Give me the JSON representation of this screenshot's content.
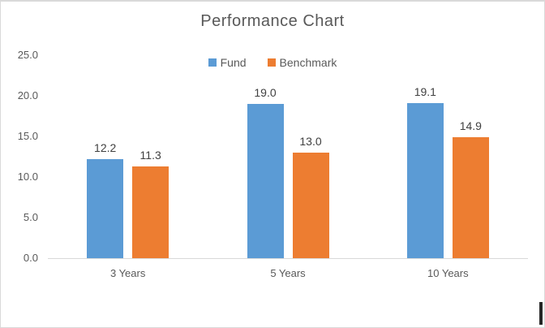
{
  "chart_data": {
    "type": "bar",
    "title": "Performance Chart",
    "categories": [
      "3 Years",
      "5 Years",
      "10 Years"
    ],
    "series": [
      {
        "name": "Fund",
        "color": "#5B9BD5",
        "values": [
          12.2,
          19.0,
          19.1
        ]
      },
      {
        "name": "Benchmark",
        "color": "#ED7D31",
        "values": [
          11.3,
          13.0,
          14.9
        ]
      }
    ],
    "data_label_decimals": 1,
    "data_labels_shown": true,
    "xlabel": "",
    "ylabel": "",
    "ylim": [
      0,
      25
    ],
    "yticks": [
      "25.0",
      "20.0",
      "15.0",
      "10.0",
      "5.0",
      "0.0"
    ],
    "grid": false,
    "legend_position": "top-center"
  },
  "colors": {
    "fund": "#5B9BD5",
    "benchmark": "#ED7D31",
    "axis_line": "#D9D9D9",
    "tick_text": "#595959",
    "title_text": "#595959",
    "data_label_text": "#404040",
    "chart_border": "#D9D9D9",
    "dark_edge_mark": "#262626"
  }
}
